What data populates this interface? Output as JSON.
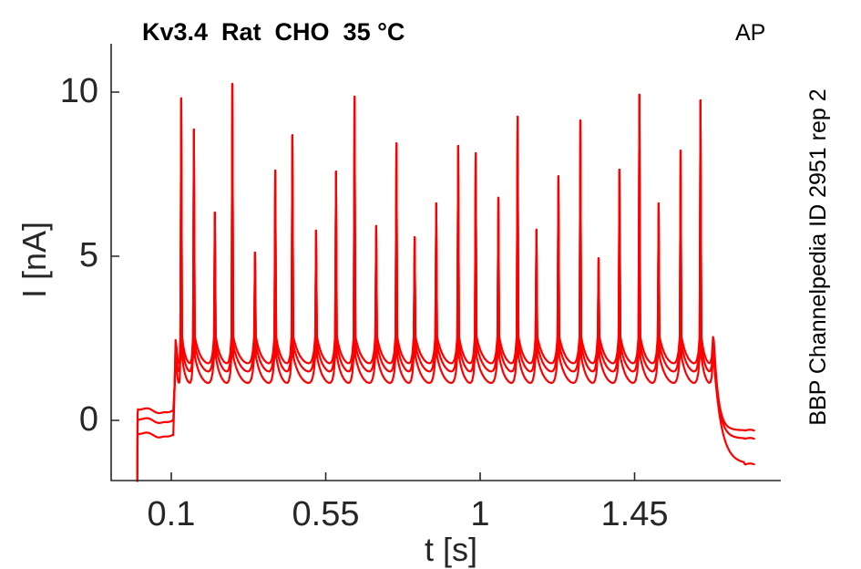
{
  "header": {
    "title": "Kv3.4  Rat  CHO  35 °C",
    "protocol_label": "AP",
    "side_label": "BBP Channelpedia ID 2951 rep 2"
  },
  "chart_data": {
    "type": "line",
    "title": "Kv3.4  Rat  CHO  35 °C",
    "xlabel": "t [s]",
    "ylabel": "I [nA]",
    "annotation_top_right": "AP",
    "annotation_right_side": "BBP Channelpedia ID 2951 rep 2",
    "xlim": [
      -0.075,
      1.876
    ],
    "ylim": [
      -1.83,
      11.47
    ],
    "x_tick_labels": [
      "0.1",
      "0.55",
      "1",
      "1.45"
    ],
    "x_tick_values": [
      0.1,
      0.55,
      1.0,
      1.45
    ],
    "y_tick_labels": [
      "0",
      "5",
      "10"
    ],
    "y_tick_values": [
      0,
      5,
      10
    ],
    "grid": false,
    "legend": "none",
    "trace_color": "#ff0000",
    "axis_color": "#262626",
    "description": "Kv3.4 potassium current recorded in CHO cells during an action-potential-train voltage clamp; three overlaid repetitions",
    "stimulus": {
      "train_start_s": 0.106,
      "train_end_s": 1.681,
      "trace_end_s": 1.8
    },
    "spikes": {
      "t_s": [
        0.129,
        0.166,
        0.227,
        0.278,
        0.344,
        0.403,
        0.453,
        0.522,
        0.58,
        0.634,
        0.697,
        0.756,
        0.809,
        0.872,
        0.936,
        0.987,
        1.053,
        1.109,
        1.164,
        1.228,
        1.292,
        1.345,
        1.406,
        1.464,
        1.52,
        1.584,
        1.642
      ],
      "peak_nA": [
        9.81,
        8.86,
        6.33,
        10.25,
        5.11,
        7.61,
        8.69,
        5.78,
        7.58,
        9.86,
        5.92,
        8.44,
        5.58,
        6.61,
        8.36,
        8.14,
        6.78,
        9.25,
        5.81,
        7.44,
        9.14,
        4.94,
        7.64,
        9.92,
        6.61,
        8.22,
        9.75
      ]
    },
    "repetitions": [
      {
        "name": "repetition-1",
        "baseline_nA": 0.32,
        "valley_nA": 1.75,
        "tail_nA": -0.3
      },
      {
        "name": "repetition-2",
        "baseline_nA": 0.02,
        "valley_nA": 1.5,
        "tail_nA": -0.55
      },
      {
        "name": "repetition-3",
        "baseline_nA": -0.42,
        "valley_nA": 1.15,
        "tail_nA": -1.33
      }
    ]
  }
}
